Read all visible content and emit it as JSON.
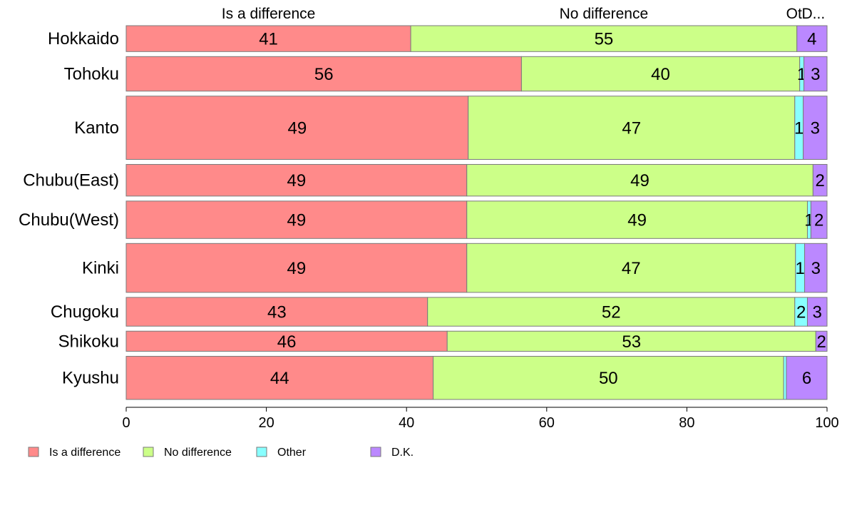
{
  "chart_data": {
    "type": "bar",
    "orientation": "horizontal",
    "stacked": true,
    "title": "",
    "xlabel": "",
    "ylabel": "",
    "xlim": [
      0,
      100
    ],
    "x_ticks": [
      0,
      20,
      40,
      60,
      80,
      100
    ],
    "grid": false,
    "legend_position": "bottom",
    "top_labels": [
      "Is a difference",
      "No difference",
      "Ot",
      "D..."
    ],
    "categories": [
      "Hokkaido",
      "Tohoku",
      "Kanto",
      "Chubu(East)",
      "Chubu(West)",
      "Kinki",
      "Chugoku",
      "Shikoku",
      "Kyushu"
    ],
    "series": [
      {
        "name": "Is a difference",
        "color": "#ff8a8a",
        "values": [
          40.6,
          56.4,
          48.8,
          48.6,
          48.6,
          48.6,
          43.0,
          45.8,
          43.8
        ],
        "labels": [
          "41",
          "56",
          "49",
          "49",
          "49",
          "49",
          "43",
          "46",
          "44"
        ]
      },
      {
        "name": "No difference",
        "color": "#ccff88",
        "values": [
          55.1,
          39.7,
          46.6,
          49.4,
          48.6,
          46.9,
          52.4,
          52.6,
          50.0
        ],
        "labels": [
          "55",
          "40",
          "47",
          "49",
          "49",
          "47",
          "52",
          "53",
          "50"
        ]
      },
      {
        "name": "Other",
        "color": "#88ffff",
        "values": [
          0,
          0.6,
          1.2,
          0,
          0.5,
          1.3,
          1.8,
          0,
          0.4
        ],
        "labels": [
          "",
          "1",
          "1",
          "",
          "1",
          "1",
          "2",
          "",
          ""
        ]
      },
      {
        "name": "D.K.",
        "color": "#bb88ff",
        "values": [
          4.3,
          3.3,
          3.4,
          2.0,
          2.3,
          3.2,
          2.8,
          1.6,
          5.8
        ],
        "labels": [
          "4",
          "3",
          "3",
          "2",
          "2",
          "3",
          "3",
          "2",
          "6"
        ]
      }
    ],
    "bar_weights": [
      0.9,
      1.2,
      2.2,
      1.1,
      1.3,
      1.7,
      1.0,
      0.7,
      1.5
    ]
  }
}
